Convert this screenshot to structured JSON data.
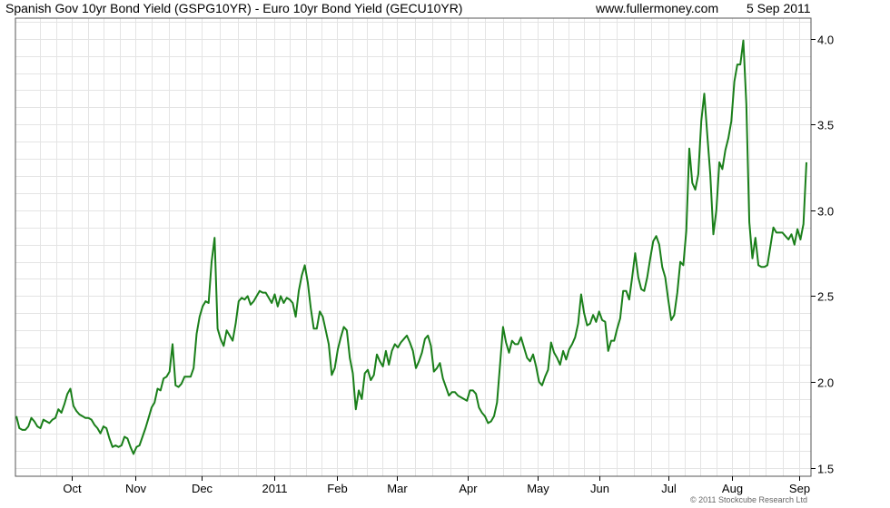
{
  "header": {
    "title": "Spanish Gov 10yr Bond Yield (GSPG10YR) - Euro 10yr Bond Yield (GECU10YR)",
    "site": "www.fullermoney.com",
    "date": "5 Sep 2011"
  },
  "footer": {
    "copyright": "© 2011 Stockcube Research Ltd"
  },
  "colors": {
    "line": "#1a7f1a",
    "grid": "#e4e4e4",
    "frame": "#555555"
  },
  "chart_data": {
    "type": "line",
    "title": "Spanish Gov 10yr Bond Yield (GSPG10YR) - Euro 10yr Bond Yield (GECU10YR)",
    "xlabel": "",
    "ylabel": "",
    "ylim": [
      1.45,
      4.12
    ],
    "y_ticks": [
      1.5,
      2.0,
      2.5,
      3.0,
      3.5,
      4.0
    ],
    "y_tick_labels": [
      "1.5",
      "2.0",
      "2.5",
      "3.0",
      "3.5",
      "4.0"
    ],
    "y_axis_side": "right",
    "x_tick_labels": [
      "Oct",
      "Nov",
      "Dec",
      "2011",
      "Feb",
      "Mar",
      "Apr",
      "May",
      "Jun",
      "Jul",
      "Aug",
      "Sep"
    ],
    "grid": true,
    "legend": "none",
    "series": [
      {
        "values": [
          1.8,
          1.73,
          1.72,
          1.72,
          1.74,
          1.79,
          1.77,
          1.74,
          1.73,
          1.78,
          1.77,
          1.76,
          1.78,
          1.79,
          1.84,
          1.82,
          1.87,
          1.93,
          1.96,
          1.86,
          1.83,
          1.81,
          1.8,
          1.79,
          1.79,
          1.78,
          1.75,
          1.73,
          1.7,
          1.74,
          1.73,
          1.67,
          1.62,
          1.63,
          1.62,
          1.63,
          1.68,
          1.67,
          1.62,
          1.58,
          1.62,
          1.63,
          1.68,
          1.73,
          1.79,
          1.85,
          1.88,
          1.96,
          1.95,
          2.02,
          2.03,
          2.06,
          2.22,
          1.98,
          1.97,
          1.99,
          2.03,
          2.03,
          2.03,
          2.08,
          2.28,
          2.38,
          2.44,
          2.47,
          2.46,
          2.7,
          2.84,
          2.31,
          2.25,
          2.21,
          2.3,
          2.27,
          2.24,
          2.34,
          2.47,
          2.49,
          2.48,
          2.5,
          2.45,
          2.47,
          2.5,
          2.53,
          2.52,
          2.52,
          2.49,
          2.46,
          2.51,
          2.44,
          2.5,
          2.46,
          2.49,
          2.48,
          2.46,
          2.38,
          2.53,
          2.62,
          2.68,
          2.58,
          2.43,
          2.31,
          2.31,
          2.41,
          2.38,
          2.3,
          2.22,
          2.04,
          2.08,
          2.19,
          2.26,
          2.32,
          2.3,
          2.14,
          2.05,
          1.84,
          1.95,
          1.9,
          2.05,
          2.07,
          2.01,
          2.04,
          2.16,
          2.12,
          2.09,
          2.18,
          2.1,
          2.18,
          2.22,
          2.2,
          2.23,
          2.25,
          2.27,
          2.23,
          2.18,
          2.08,
          2.12,
          2.17,
          2.25,
          2.27,
          2.21,
          2.06,
          2.08,
          2.11,
          2.02,
          1.97,
          1.92,
          1.94,
          1.94,
          1.92,
          1.91,
          1.9,
          1.89,
          1.95,
          1.95,
          1.93,
          1.85,
          1.82,
          1.8,
          1.76,
          1.77,
          1.8,
          1.88,
          2.1,
          2.32,
          2.23,
          2.17,
          2.24,
          2.22,
          2.22,
          2.26,
          2.2,
          2.14,
          2.12,
          2.16,
          2.09,
          2.0,
          1.98,
          2.03,
          2.07,
          2.23,
          2.17,
          2.14,
          2.1,
          2.18,
          2.13,
          2.19,
          2.22,
          2.26,
          2.34,
          2.51,
          2.4,
          2.33,
          2.34,
          2.39,
          2.35,
          2.41,
          2.36,
          2.35,
          2.18,
          2.24,
          2.24,
          2.31,
          2.37,
          2.53,
          2.53,
          2.48,
          2.61,
          2.75,
          2.61,
          2.54,
          2.53,
          2.61,
          2.72,
          2.82,
          2.85,
          2.8,
          2.67,
          2.61,
          2.48,
          2.36,
          2.39,
          2.52,
          2.7,
          2.68,
          2.88,
          3.36,
          3.16,
          3.12,
          3.21,
          3.52,
          3.68,
          3.44,
          3.21,
          2.86,
          3.0,
          3.28,
          3.24,
          3.35,
          3.42,
          3.52,
          3.75,
          3.85,
          3.85,
          3.99,
          3.62,
          2.93,
          2.72,
          2.84,
          2.68,
          2.67,
          2.67,
          2.68,
          2.79,
          2.9,
          2.87,
          2.87,
          2.87,
          2.85,
          2.83,
          2.86,
          2.8,
          2.89,
          2.83,
          2.92,
          3.28
        ]
      }
    ]
  }
}
